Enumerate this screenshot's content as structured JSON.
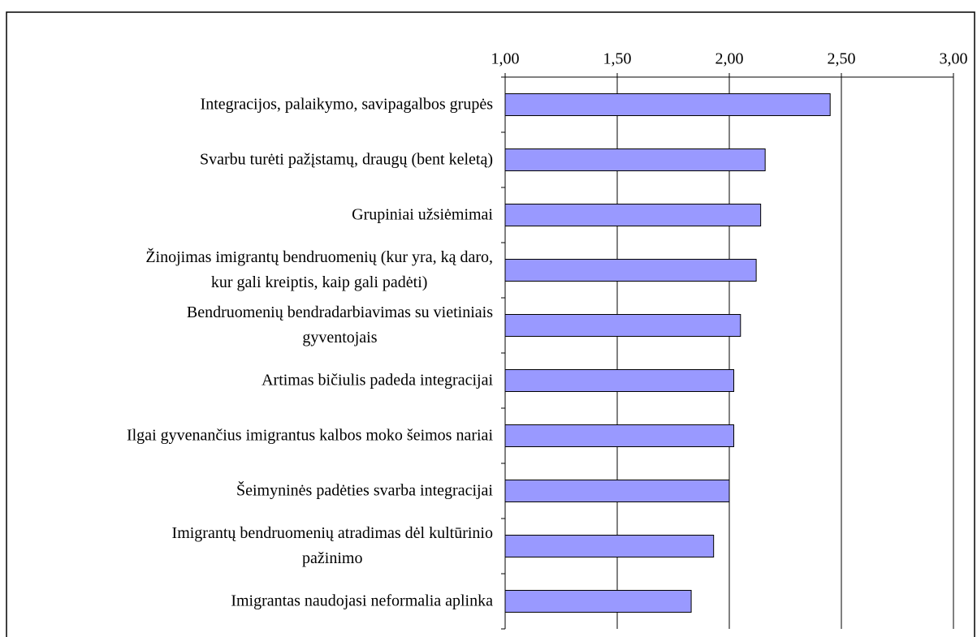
{
  "chart_data": {
    "type": "bar",
    "orientation": "horizontal",
    "categories": [
      "Integracijos, palaikymo, savipagalbos grupės",
      "Svarbu turėti pažįstamų, draugų (bent keletą)",
      "Grupiniai užsiėmimai",
      "Žinojimas imigrantų bendruomenių (kur yra, ką daro,\nkur gali kreiptis, kaip gali padėti)",
      "Bendruomenių bendradarbiavimas su vietiniais\ngyventojais",
      "Artimas bičiulis padeda integracijai",
      "Ilgai gyvenančius imigrantus kalbos moko šeimos nariai",
      "Šeimyninės padėties svarba integracijai",
      "Imigrantų bendruomenių atradimas dėl kultūrinio\npažinimo",
      "Imigrantas naudojasi neformalia aplinka"
    ],
    "values": [
      2.45,
      2.16,
      2.14,
      2.12,
      2.05,
      2.02,
      2.02,
      2.0,
      1.93,
      1.83
    ],
    "color": "#9999ff",
    "xlim": [
      1,
      3
    ],
    "xticks": [
      {
        "value": 1,
        "label": "1,00"
      },
      {
        "value": 1.5,
        "label": "1,50"
      },
      {
        "value": 2,
        "label": "2,00"
      },
      {
        "value": 2.5,
        "label": "2,50"
      },
      {
        "value": 3,
        "label": "3,00"
      }
    ],
    "grid": true
  }
}
